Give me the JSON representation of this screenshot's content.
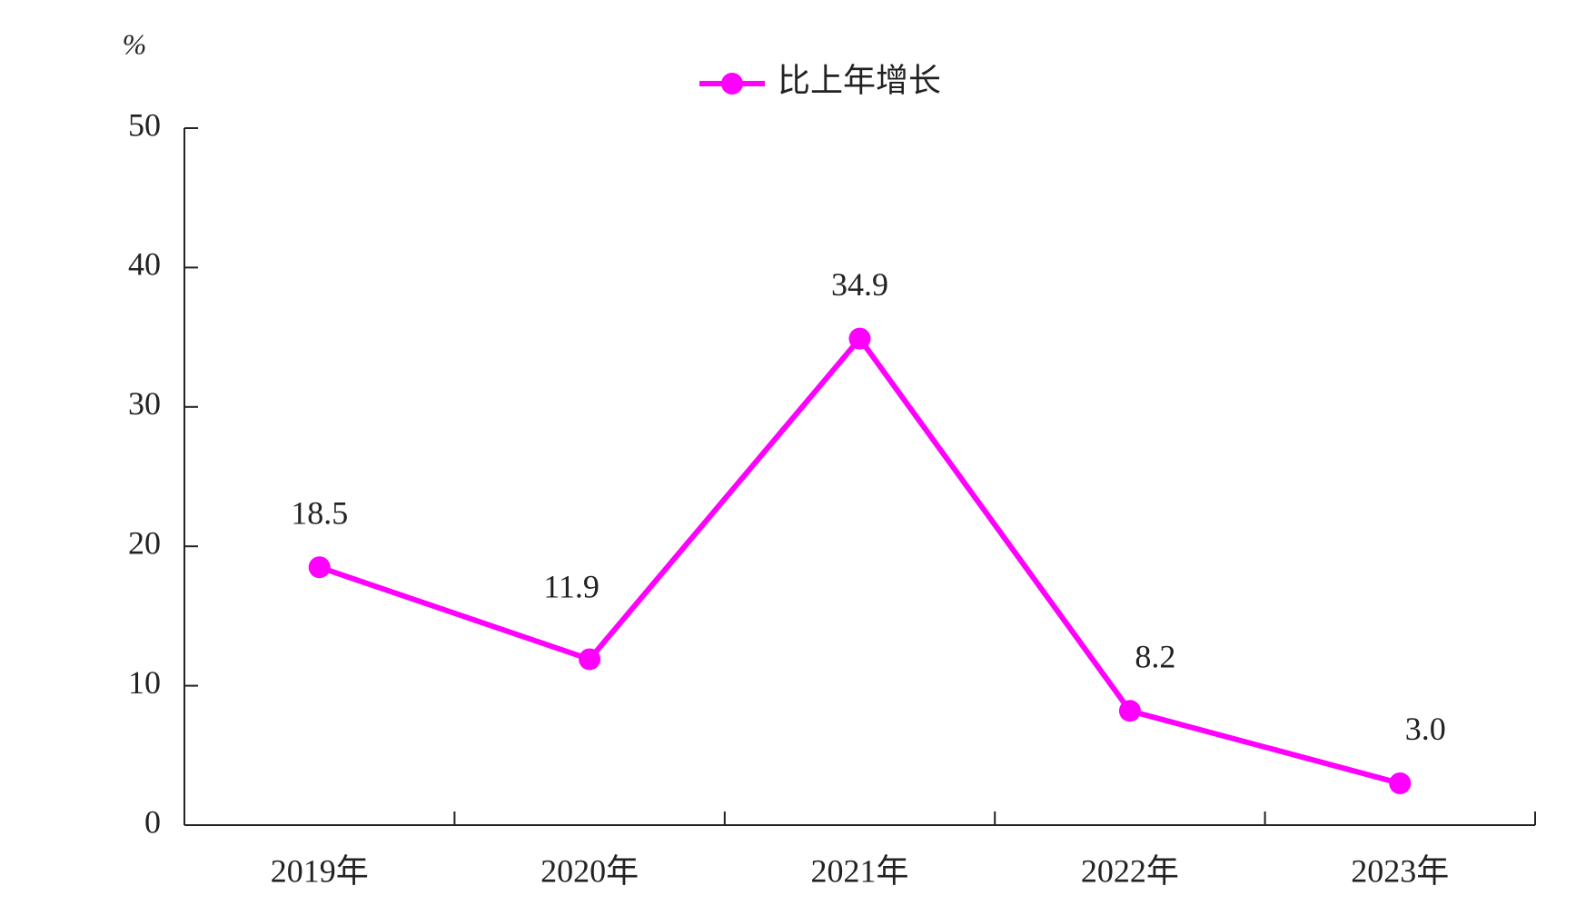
{
  "chart_data": {
    "type": "line",
    "ylabel": "%",
    "categories": [
      "2019年",
      "2020年",
      "2021年",
      "2022年",
      "2023年"
    ],
    "series": [
      {
        "name": "比上年增长",
        "color": "#ff00ff",
        "values": [
          18.5,
          11.9,
          34.9,
          8.2,
          3.0
        ],
        "value_labels": [
          "18.5",
          "11.9",
          "34.9",
          "8.2",
          "3.0"
        ]
      }
    ],
    "ylim": [
      0,
      50
    ],
    "yticks": [
      0,
      10,
      20,
      30,
      40,
      50
    ],
    "legend": "top"
  }
}
